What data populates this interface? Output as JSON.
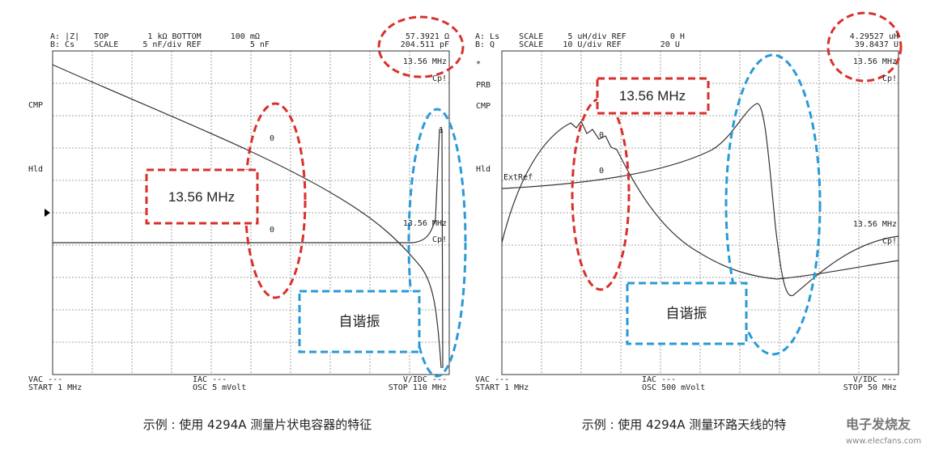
{
  "left": {
    "header": [
      "A: |Z|   TOP        1 kΩ BOTTOM      100 mΩ",
      "B: Cs    SCALE     5 nF/div REF          5 nF"
    ],
    "readout": [
      "57.3921 Ω",
      "204.511 pF"
    ],
    "side_labels": [
      "CMP",
      "Hld"
    ],
    "marker_labels": [
      "13.56 MHz",
      "13.56 MHz",
      "Cp!",
      "Cp!"
    ],
    "marker_points": [
      "0",
      "0",
      "1"
    ],
    "footer": [
      "VAC ---",
      "START 1 MHz",
      "IAC ---",
      "OSC 5 mVolt",
      "V/IDC ---",
      "STOP 110 MHz"
    ],
    "callouts": [
      "13.56 MHz",
      "自谐振"
    ],
    "caption": "示例 : 使用 4294A 测量片状电容器的特征"
  },
  "right": {
    "header": [
      "A: Ls    SCALE     5 uH/div REF         0 H",
      "B: Q     SCALE    10 U/div REF        20 U"
    ],
    "readout": [
      "4.29527 uH",
      "39.8437 U"
    ],
    "side_labels": [
      "*",
      "PRB",
      "CMP",
      "Hld",
      "ExtRef"
    ],
    "marker_labels": [
      "13.56 MHz",
      "13.56 MHz",
      "Cp!",
      "Cp!"
    ],
    "marker_points": [
      "0",
      "0"
    ],
    "footer": [
      "VAC ---",
      "START 1 MHz",
      "IAC ---",
      "OSC 500 mVolt",
      "V/IDC ---",
      "STOP 50 MHz"
    ],
    "callouts": [
      "13.56 MHz",
      "自谐振"
    ],
    "caption": "示例 : 使用 4294A 测量环路天线的特"
  },
  "watermark": [
    "电子发烧友",
    "www.elecfans.com"
  ]
}
